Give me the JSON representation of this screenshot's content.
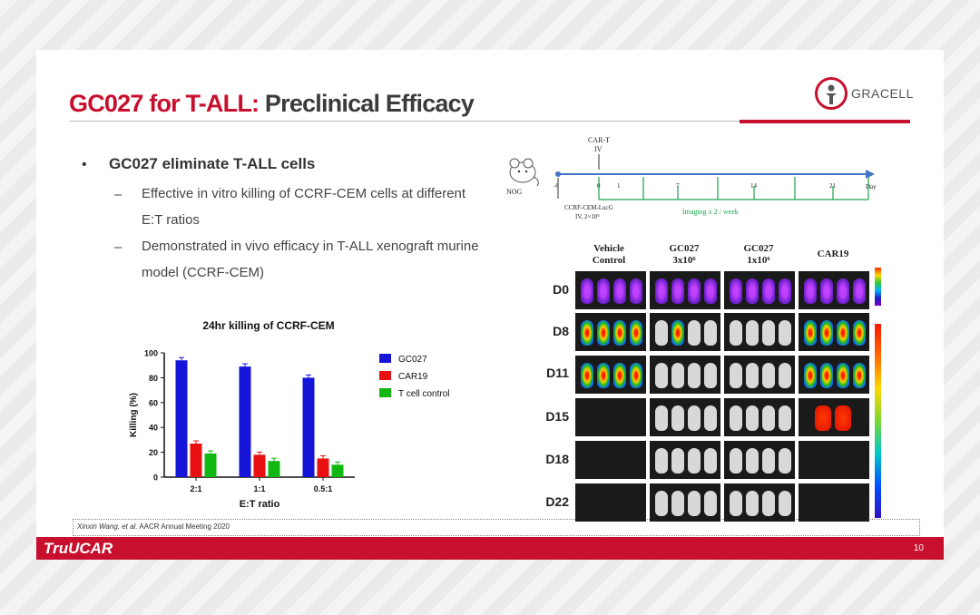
{
  "slide": {
    "title_red": "GC027 for T-ALL:",
    "title_dark": "Preclinical Efficacy",
    "logo_text": "GRACELL",
    "bullet_symbol": "•",
    "bullet_main": "GC027 eliminate T-ALL cells",
    "dash_symbol": "–",
    "sub_bullets": [
      "Effective in vitro killing of CCRF-CEM cells at different E:T ratios",
      "Demonstrated in vivo efficacy in T-ALL xenograft murine model (CCRF-CEM)"
    ],
    "citation_author": "Xinxin Wang, et al.",
    "citation_venue": "AACR Annual Meeting 2020",
    "footer_brand": "TruUCAR",
    "page_number": "10"
  },
  "timeline": {
    "cart_label": "CAR-T",
    "iv_label": "IV",
    "nog_label": "NOG",
    "ticks": [
      "-6",
      "0",
      "1",
      "7",
      "14",
      "21"
    ],
    "day_label": "Day",
    "injection_label": "CCRF-CEM-LucG",
    "injection_dose": "IV, 2×10⁶",
    "imaging_label": "Imaging x 2 / week"
  },
  "imaging": {
    "columns": [
      {
        "line1": "Vehicle",
        "line2": "Control"
      },
      {
        "line1": "GC027",
        "line2": "3x10⁶"
      },
      {
        "line1": "GC027",
        "line2": "1x10⁶"
      },
      {
        "line1": "CAR19",
        "line2": ""
      }
    ],
    "rows": [
      "D0",
      "D8",
      "D11",
      "D15",
      "D18",
      "D22"
    ]
  },
  "chart_data": {
    "type": "bar",
    "title": "24hr killing of CCRF-CEM",
    "xlabel": "E:T ratio",
    "ylabel": "Killing (%)",
    "ylim": [
      0,
      100
    ],
    "yticks": [
      "0",
      "20",
      "40",
      "60",
      "80",
      "100"
    ],
    "categories": [
      "2:1",
      "1:1",
      "0.5:1"
    ],
    "series": [
      {
        "name": "GC027",
        "color": "#1515d8",
        "values": [
          94,
          89,
          80
        ]
      },
      {
        "name": "CAR19",
        "color": "#e81010",
        "values": [
          27,
          18,
          15
        ]
      },
      {
        "name": "T cell control",
        "color": "#12b812",
        "values": [
          19,
          13,
          10
        ]
      }
    ],
    "legend_position": "right"
  }
}
